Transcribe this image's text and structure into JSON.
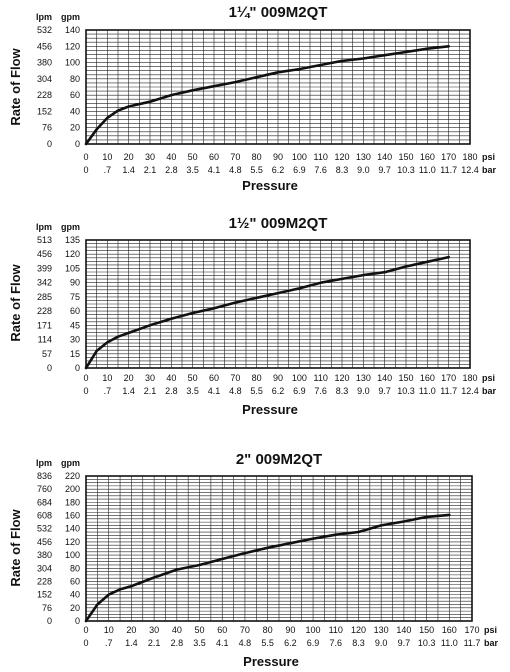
{
  "chart_data": [
    {
      "type": "line",
      "title": "1¼\" 009M2QT",
      "xlabel": "Pressure",
      "ylabel": "Rate of Flow",
      "x_unit": "psi",
      "x2_unit": "bar",
      "y_unit": "gpm",
      "y2_unit": "lpm",
      "xlim": [
        0,
        180
      ],
      "ylim": [
        0,
        140
      ],
      "x_ticks": [
        "0",
        "10",
        "20",
        "30",
        "40",
        "50",
        "60",
        "70",
        "80",
        "90",
        "100",
        "110",
        "120",
        "130",
        "140",
        "150",
        "160",
        "170",
        "180"
      ],
      "x2_ticks": [
        "0",
        ".7",
        "1.4",
        "2.1",
        "2.8",
        "3.5",
        "4.1",
        "4.8",
        "5.5",
        "6.2",
        "6.9",
        "7.6",
        "8.3",
        "9.0",
        "9.7",
        "10.3",
        "11.0",
        "11.7",
        "12.4"
      ],
      "y_ticks": [
        "0",
        "20",
        "40",
        "60",
        "80",
        "100",
        "120",
        "140"
      ],
      "y2_ticks": [
        "0",
        "76",
        "152",
        "228",
        "304",
        "380",
        "456",
        "532"
      ],
      "grid": true,
      "series": [
        {
          "x": [
            0,
            5,
            10,
            15,
            20,
            30,
            40,
            50,
            60,
            70,
            80,
            90,
            100,
            110,
            120,
            130,
            140,
            150,
            160,
            170
          ],
          "y": [
            0,
            18,
            32,
            41,
            46,
            52,
            60,
            66,
            71,
            76,
            82,
            88,
            92,
            97,
            102,
            105,
            109,
            113,
            117,
            120
          ]
        }
      ]
    },
    {
      "type": "line",
      "title": "1½\" 009M2QT",
      "xlabel": "Pressure",
      "ylabel": "Rate of Flow",
      "x_unit": "psi",
      "x2_unit": "bar",
      "y_unit": "gpm",
      "y2_unit": "lpm",
      "xlim": [
        0,
        180
      ],
      "ylim": [
        0,
        135
      ],
      "x_ticks": [
        "0",
        "10",
        "20",
        "30",
        "40",
        "50",
        "60",
        "70",
        "80",
        "90",
        "100",
        "110",
        "120",
        "130",
        "140",
        "150",
        "160",
        "170",
        "180"
      ],
      "x2_ticks": [
        "0",
        ".7",
        "1.4",
        "2.1",
        "2.8",
        "3.5",
        "4.1",
        "4.8",
        "5.5",
        "6.2",
        "6.9",
        "7.6",
        "8.3",
        "9.0",
        "9.7",
        "10.3",
        "11.0",
        "11.7",
        "12.4"
      ],
      "y_ticks": [
        "0",
        "15",
        "30",
        "45",
        "60",
        "75",
        "90",
        "105",
        "120",
        "135"
      ],
      "y2_ticks": [
        "0",
        "57",
        "114",
        "171",
        "228",
        "285",
        "342",
        "399",
        "456",
        "513"
      ],
      "grid": true,
      "series": [
        {
          "x": [
            0,
            5,
            10,
            15,
            20,
            30,
            40,
            50,
            60,
            70,
            80,
            90,
            100,
            110,
            120,
            130,
            140,
            150,
            160,
            170
          ],
          "y": [
            0,
            18,
            27,
            33,
            37,
            45,
            52,
            58,
            63,
            69,
            74,
            79,
            84,
            90,
            94,
            98,
            101,
            107,
            112,
            117
          ]
        }
      ]
    },
    {
      "type": "line",
      "title": "2\" 009M2QT",
      "xlabel": "Pressure",
      "ylabel": "Rate of Flow",
      "x_unit": "psi",
      "x2_unit": "bar",
      "y_unit": "gpm",
      "y2_unit": "lpm",
      "xlim": [
        0,
        170
      ],
      "ylim": [
        0,
        220
      ],
      "x_ticks": [
        "0",
        "10",
        "20",
        "30",
        "40",
        "50",
        "60",
        "70",
        "80",
        "90",
        "100",
        "110",
        "120",
        "130",
        "140",
        "150",
        "160",
        "170"
      ],
      "x2_ticks": [
        "0",
        ".7",
        "1.4",
        "2.1",
        "2.8",
        "3.5",
        "4.1",
        "4.8",
        "5.5",
        "6.2",
        "6.9",
        "7.6",
        "8.3",
        "9.0",
        "9.7",
        "10.3",
        "11.0",
        "11.7"
      ],
      "y_ticks": [
        "0",
        "20",
        "40",
        "60",
        "80",
        "100",
        "120",
        "140",
        "160",
        "180",
        "200",
        "220"
      ],
      "y2_ticks": [
        "0",
        "76",
        "152",
        "228",
        "304",
        "380",
        "456",
        "532",
        "608",
        "684",
        "760",
        "836"
      ],
      "grid": true,
      "series": [
        {
          "x": [
            0,
            5,
            10,
            15,
            20,
            30,
            40,
            50,
            60,
            70,
            80,
            90,
            100,
            110,
            120,
            130,
            140,
            150,
            160
          ],
          "y": [
            0,
            25,
            40,
            48,
            53,
            66,
            78,
            85,
            94,
            103,
            111,
            118,
            125,
            131,
            135,
            145,
            151,
            158,
            161
          ]
        }
      ]
    }
  ]
}
